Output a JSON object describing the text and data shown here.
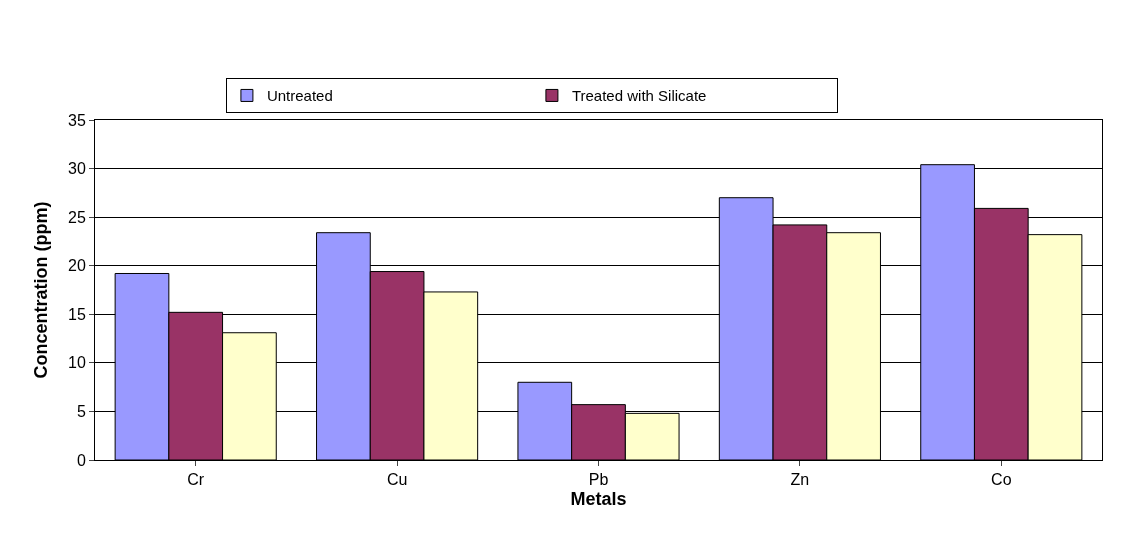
{
  "chart_data": {
    "type": "bar",
    "xlabel": "Metals",
    "ylabel": "Concentration (ppm)",
    "categories": [
      "Cr",
      "Cu",
      "Pb",
      "Zn",
      "Co"
    ],
    "series": [
      {
        "name": "Untreated",
        "color": "#9999ff",
        "values": [
          19.2,
          23.4,
          8.0,
          27.0,
          30.4
        ]
      },
      {
        "name": "Treated with Silicate",
        "color": "#993366",
        "values": [
          15.2,
          19.4,
          5.7,
          24.2,
          25.9
        ]
      },
      {
        "color": "#ffffcc",
        "values": [
          13.1,
          17.3,
          4.8,
          23.4,
          23.2
        ]
      }
    ],
    "ylim": [
      0,
      35
    ],
    "yticks": [
      0,
      5,
      10,
      15,
      20,
      25,
      30,
      35
    ],
    "grid": "y",
    "legend": "top"
  }
}
